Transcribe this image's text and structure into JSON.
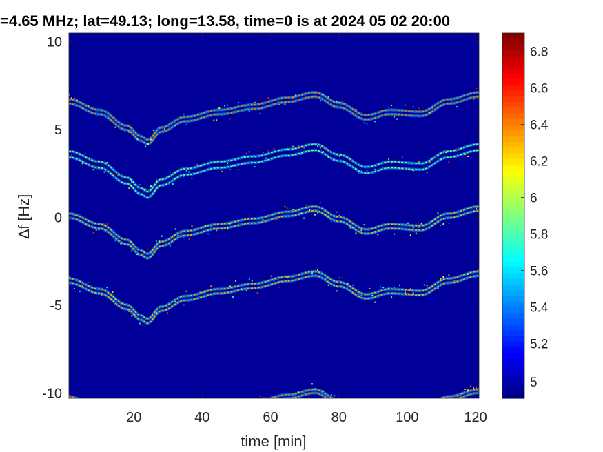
{
  "chart_data": {
    "type": "heatmap",
    "title": "=4.65 MHz;  lat=49.13; long=13.58, time=0 is at 2024 05 02 20:00",
    "xlabel": "time [min]",
    "ylabel": "∆f [Hz]",
    "xlim": [
      1,
      121
    ],
    "ylim": [
      -10.3,
      10.5
    ],
    "xticks": [
      20,
      40,
      60,
      80,
      100,
      120
    ],
    "yticks": [
      -10,
      -5,
      0,
      5,
      10
    ],
    "colorbar": {
      "colormap": "jet",
      "range": [
        4.9,
        6.9
      ],
      "ticks": [
        4.99,
        5.2,
        5.4,
        5.6,
        5.8,
        6,
        6.2,
        6.4,
        6.6,
        6.8
      ],
      "tick_labels": [
        "5",
        "5.2",
        "5.4",
        "5.6",
        "5.8",
        "6",
        "6.2",
        "6.4",
        "6.6",
        "6.8"
      ]
    },
    "background_value": 4.95,
    "reference_trace": {
      "description_note": "",
      "time": [
        1,
        10,
        18,
        22,
        24,
        28,
        35,
        45,
        55,
        65,
        73,
        80,
        88,
        95,
        104,
        112,
        121
      ],
      "offset": [
        6.6,
        6.0,
        5.1,
        4.5,
        4.3,
        5.0,
        5.6,
        6.0,
        6.3,
        6.7,
        7.0,
        6.4,
        5.7,
        6.0,
        5.9,
        6.6,
        7.0
      ]
    },
    "series": [
      {
        "base_offset": 0.0,
        "split": 0.25,
        "intensity": 6.4
      },
      {
        "base_offset": -3.0,
        "split": 0.35,
        "intensity": 5.9
      },
      {
        "base_offset": -6.5,
        "split": 0.25,
        "intensity": 6.3
      },
      {
        "base_offset": -10.2,
        "split": 0.25,
        "intensity": 6.3
      },
      {
        "base_offset": -16.9,
        "split": 0.2,
        "intensity": 6.4
      }
    ]
  }
}
